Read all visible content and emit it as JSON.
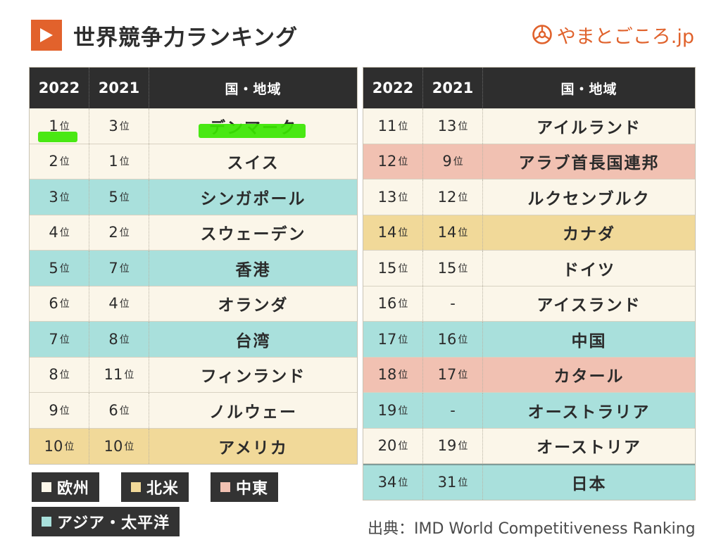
{
  "header": {
    "title": "世界競争力ランキング",
    "brand": "やまとごころ.jp"
  },
  "columns": {
    "y2022": "2022",
    "y2021": "2021",
    "name": "国・地域"
  },
  "rank_suffix": "位",
  "left_rows": [
    {
      "r2022": "1",
      "r2021": "3",
      "name": "デンマーク",
      "region": "eu"
    },
    {
      "r2022": "2",
      "r2021": "1",
      "name": "スイス",
      "region": "eu"
    },
    {
      "r2022": "3",
      "r2021": "5",
      "name": "シンガポール",
      "region": "ap"
    },
    {
      "r2022": "4",
      "r2021": "2",
      "name": "スウェーデン",
      "region": "eu"
    },
    {
      "r2022": "5",
      "r2021": "7",
      "name": "香港",
      "region": "ap"
    },
    {
      "r2022": "6",
      "r2021": "4",
      "name": "オランダ",
      "region": "eu"
    },
    {
      "r2022": "7",
      "r2021": "8",
      "name": "台湾",
      "region": "ap"
    },
    {
      "r2022": "8",
      "r2021": "11",
      "name": "フィンランド",
      "region": "eu"
    },
    {
      "r2022": "9",
      "r2021": "6",
      "name": "ノルウェー",
      "region": "eu"
    },
    {
      "r2022": "10",
      "r2021": "10",
      "name": "アメリカ",
      "region": "na"
    }
  ],
  "right_rows": [
    {
      "r2022": "11",
      "r2021": "13",
      "name": "アイルランド",
      "region": "eu"
    },
    {
      "r2022": "12",
      "r2021": "9",
      "name": "アラブ首長国連邦",
      "region": "me"
    },
    {
      "r2022": "13",
      "r2021": "12",
      "name": "ルクセンブルク",
      "region": "eu"
    },
    {
      "r2022": "14",
      "r2021": "14",
      "name": "カナダ",
      "region": "na"
    },
    {
      "r2022": "15",
      "r2021": "15",
      "name": "ドイツ",
      "region": "eu"
    },
    {
      "r2022": "16",
      "r2021": "-",
      "name": "アイスランド",
      "region": "eu"
    },
    {
      "r2022": "17",
      "r2021": "16",
      "name": "中国",
      "region": "ap"
    },
    {
      "r2022": "18",
      "r2021": "17",
      "name": "カタール",
      "region": "me"
    },
    {
      "r2022": "19",
      "r2021": "-",
      "name": "オーストラリア",
      "region": "ap"
    },
    {
      "r2022": "20",
      "r2021": "19",
      "name": "オーストリア",
      "region": "eu"
    },
    {
      "r2022": "34",
      "r2021": "31",
      "name": "日本",
      "region": "ap"
    }
  ],
  "legend": [
    {
      "label": "欧州",
      "color": "#fbf6e9"
    },
    {
      "label": "北米",
      "color": "#f1d999"
    },
    {
      "label": "中東",
      "color": "#f1c1b2"
    },
    {
      "label": "アジア・太平洋",
      "color": "#a9e0dc"
    }
  ],
  "source": "出典：IMD World Competitiveness Ranking"
}
